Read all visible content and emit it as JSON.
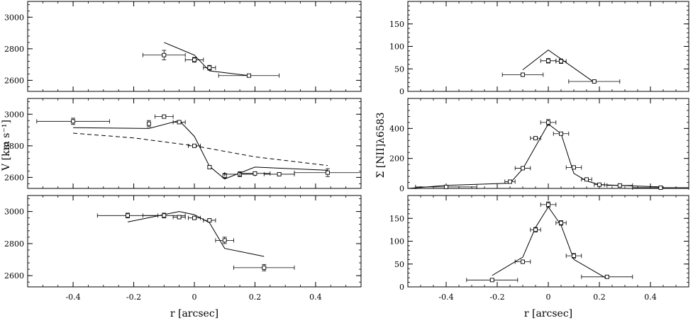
{
  "chart_data": [
    {
      "type": "scatter",
      "panel": "left-top",
      "xlim": [
        -0.55,
        0.55
      ],
      "ylim": [
        2530,
        3100
      ],
      "yticks": [
        2600,
        2800,
        3000
      ],
      "xlabel": "",
      "ylabel": "",
      "points": [
        {
          "x": -0.1,
          "y": 2760,
          "xerr": 0.07,
          "yerr": 30
        },
        {
          "x": 0.0,
          "y": 2730,
          "xerr": 0.03,
          "yerr": 15
        },
        {
          "x": 0.05,
          "y": 2680,
          "xerr": 0.02,
          "yerr": 15
        },
        {
          "x": 0.18,
          "y": 2630,
          "xerr": 0.1,
          "yerr": 10
        }
      ],
      "model": [
        [
          -0.1,
          2840
        ],
        [
          0.0,
          2760
        ],
        [
          0.05,
          2660
        ],
        [
          0.18,
          2630
        ]
      ]
    },
    {
      "type": "scatter",
      "panel": "left-mid",
      "xlim": [
        -0.55,
        0.55
      ],
      "ylim": [
        2530,
        3100
      ],
      "yticks": [
        2600,
        2800,
        3000
      ],
      "xlabel": "",
      "ylabel": "V [km s⁻¹]",
      "points": [
        {
          "x": -0.4,
          "y": 2955,
          "xerr": 0.12,
          "yerr": 20
        },
        {
          "x": -0.15,
          "y": 2940,
          "xerr": 0.0,
          "yerr": 20
        },
        {
          "x": -0.1,
          "y": 2985,
          "xerr": 0.03,
          "yerr": 10
        },
        {
          "x": -0.05,
          "y": 2950,
          "xerr": 0.02,
          "yerr": 10
        },
        {
          "x": 0.0,
          "y": 2800,
          "xerr": 0.02,
          "yerr": 10
        },
        {
          "x": 0.05,
          "y": 2665,
          "xerr": 0.0,
          "yerr": 10
        },
        {
          "x": 0.1,
          "y": 2610,
          "xerr": 0.0,
          "yerr": 15
        },
        {
          "x": 0.15,
          "y": 2620,
          "xerr": 0.05,
          "yerr": 15
        },
        {
          "x": 0.2,
          "y": 2625,
          "xerr": 0.05,
          "yerr": 10
        },
        {
          "x": 0.28,
          "y": 2620,
          "xerr": 0.05,
          "yerr": 10
        },
        {
          "x": 0.44,
          "y": 2630,
          "xerr": 0.11,
          "yerr": 25
        }
      ],
      "model": [
        [
          -0.4,
          2915
        ],
        [
          -0.15,
          2910
        ],
        [
          -0.05,
          2960
        ],
        [
          0.0,
          2860
        ],
        [
          0.05,
          2670
        ],
        [
          0.1,
          2590
        ],
        [
          0.2,
          2665
        ],
        [
          0.44,
          2645
        ]
      ],
      "model_dashed": [
        [
          -0.4,
          2880
        ],
        [
          -0.2,
          2850
        ],
        [
          0.0,
          2800
        ],
        [
          0.2,
          2730
        ],
        [
          0.44,
          2675
        ]
      ]
    },
    {
      "type": "scatter",
      "panel": "left-bottom",
      "xlim": [
        -0.55,
        0.55
      ],
      "ylim": [
        2530,
        3100
      ],
      "yticks": [
        2600,
        2800,
        3000
      ],
      "xlabel": "r [arcsec]",
      "ylabel": "",
      "points": [
        {
          "x": -0.22,
          "y": 2975,
          "xerr": 0.1,
          "yerr": 15
        },
        {
          "x": -0.1,
          "y": 2975,
          "xerr": 0.07,
          "yerr": 15
        },
        {
          "x": -0.05,
          "y": 2965,
          "xerr": 0.02,
          "yerr": 10
        },
        {
          "x": 0.0,
          "y": 2960,
          "xerr": 0.02,
          "yerr": 10
        },
        {
          "x": 0.05,
          "y": 2945,
          "xerr": 0.02,
          "yerr": 10
        },
        {
          "x": 0.1,
          "y": 2820,
          "xerr": 0.03,
          "yerr": 20
        },
        {
          "x": 0.23,
          "y": 2650,
          "xerr": 0.1,
          "yerr": 20
        }
      ],
      "model": [
        [
          -0.22,
          2935
        ],
        [
          -0.05,
          3000
        ],
        [
          0.0,
          2980
        ],
        [
          0.05,
          2930
        ],
        [
          0.1,
          2770
        ],
        [
          0.23,
          2720
        ]
      ]
    },
    {
      "type": "scatter",
      "panel": "right-top",
      "xlim": [
        -0.55,
        0.55
      ],
      "ylim": [
        0,
        200
      ],
      "yticks": [
        0,
        50,
        100,
        150
      ],
      "xlabel": "",
      "ylabel": "",
      "points": [
        {
          "x": -0.1,
          "y": 37,
          "xerr": 0.08,
          "yerr": 4
        },
        {
          "x": 0.0,
          "y": 68,
          "xerr": 0.03,
          "yerr": 5
        },
        {
          "x": 0.05,
          "y": 67,
          "xerr": 0.02,
          "yerr": 5
        },
        {
          "x": 0.18,
          "y": 22,
          "xerr": 0.1,
          "yerr": 3
        }
      ],
      "model": [
        [
          -0.1,
          48
        ],
        [
          0.0,
          92
        ],
        [
          0.18,
          20
        ]
      ]
    },
    {
      "type": "scatter",
      "panel": "right-mid",
      "xlim": [
        -0.55,
        0.55
      ],
      "ylim": [
        0,
        600
      ],
      "yticks": [
        0,
        200,
        400
      ],
      "xlabel": "",
      "ylabel": "Σ [NII]λ6583",
      "points": [
        {
          "x": -0.4,
          "y": 10,
          "xerr": 0.12,
          "yerr": 5
        },
        {
          "x": -0.15,
          "y": 45,
          "xerr": 0.02,
          "yerr": 8
        },
        {
          "x": -0.1,
          "y": 135,
          "xerr": 0.03,
          "yerr": 10
        },
        {
          "x": -0.05,
          "y": 335,
          "xerr": 0.02,
          "yerr": 10
        },
        {
          "x": 0.0,
          "y": 440,
          "xerr": 0.03,
          "yerr": 20
        },
        {
          "x": 0.05,
          "y": 365,
          "xerr": 0.03,
          "yerr": 10
        },
        {
          "x": 0.1,
          "y": 140,
          "xerr": 0.03,
          "yerr": 10
        },
        {
          "x": 0.15,
          "y": 60,
          "xerr": 0.02,
          "yerr": 5
        },
        {
          "x": 0.2,
          "y": 25,
          "xerr": 0.02,
          "yerr": 5
        },
        {
          "x": 0.28,
          "y": 20,
          "xerr": 0.05,
          "yerr": 5
        },
        {
          "x": 0.44,
          "y": 5,
          "xerr": 0.11,
          "yerr": 5
        }
      ],
      "model": [
        [
          -0.55,
          0
        ],
        [
          -0.4,
          20
        ],
        [
          -0.15,
          35
        ],
        [
          -0.1,
          130
        ],
        [
          -0.05,
          280
        ],
        [
          0.0,
          430
        ],
        [
          0.05,
          365
        ],
        [
          0.1,
          100
        ],
        [
          0.15,
          50
        ],
        [
          0.2,
          25
        ],
        [
          0.28,
          20
        ],
        [
          0.44,
          10
        ]
      ]
    },
    {
      "type": "scatter",
      "panel": "right-bottom",
      "xlim": [
        -0.55,
        0.55
      ],
      "ylim": [
        0,
        200
      ],
      "yticks": [
        0,
        50,
        100,
        150
      ],
      "xlabel": "r [arcsec]",
      "ylabel": "",
      "points": [
        {
          "x": -0.22,
          "y": 15,
          "xerr": 0.1,
          "yerr": 3
        },
        {
          "x": -0.1,
          "y": 55,
          "xerr": 0.03,
          "yerr": 4
        },
        {
          "x": -0.05,
          "y": 125,
          "xerr": 0.02,
          "yerr": 5
        },
        {
          "x": 0.0,
          "y": 180,
          "xerr": 0.03,
          "yerr": 6
        },
        {
          "x": 0.05,
          "y": 140,
          "xerr": 0.02,
          "yerr": 5
        },
        {
          "x": 0.1,
          "y": 68,
          "xerr": 0.03,
          "yerr": 5
        },
        {
          "x": 0.23,
          "y": 22,
          "xerr": 0.1,
          "yerr": 3
        }
      ],
      "model": [
        [
          -0.22,
          25
        ],
        [
          -0.1,
          65
        ],
        [
          -0.05,
          130
        ],
        [
          0.0,
          175
        ],
        [
          0.05,
          135
        ],
        [
          0.1,
          60
        ],
        [
          0.23,
          18
        ]
      ]
    }
  ],
  "xticks": [
    -0.4,
    -0.2,
    0,
    0.2,
    0.4
  ],
  "xtick_labels": [
    "-0.4",
    "-0.2",
    "0",
    "0.2",
    "0.4"
  ]
}
